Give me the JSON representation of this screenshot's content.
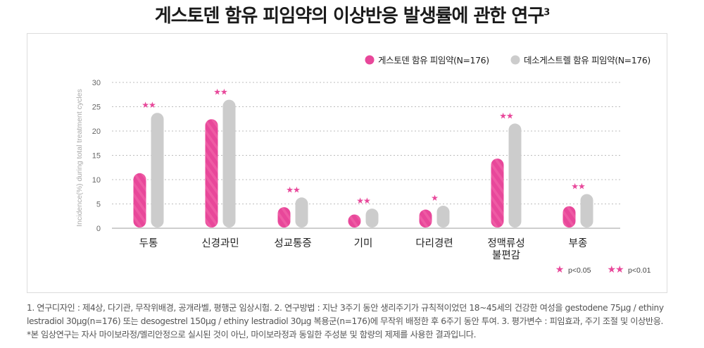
{
  "title": "게스토덴 함유 피임약의 이상반응 발생률에 관한 연구",
  "title_sup": "3",
  "legend": {
    "series1": "게스토덴 함유 피임약(N=176)",
    "series2": "데소게스트렐 함유 피임약(N=176)",
    "sig1_label": "p<0.05",
    "sig2_label": "p<0.01"
  },
  "colors": {
    "series1": "#e8479a",
    "series2": "#cccccc",
    "star": "#e8479a"
  },
  "chart_data": {
    "type": "bar",
    "title": "게스토덴 함유 피임약의 이상반응 발생률에 관한 연구",
    "ylabel": "Incidence(%) during total treatment cycles",
    "xlabel": "",
    "ylim": [
      0,
      30
    ],
    "yticks": [
      0,
      5,
      10,
      15,
      20,
      25,
      30
    ],
    "grid": true,
    "legend_position": "top-right",
    "categories": [
      "두통",
      "신경과민",
      "성교통증",
      "기미",
      "다리경련",
      "정맥류성\n불편감",
      "부종"
    ],
    "series": [
      {
        "name": "게스토덴 함유 피임약(N=176)",
        "values": [
          10.9,
          22.0,
          3.9,
          2.4,
          3.4,
          13.9,
          4.1
        ]
      },
      {
        "name": "데소게스트렐 함유 피임약(N=176)",
        "values": [
          23.3,
          26.0,
          5.9,
          3.6,
          4.2,
          21.1,
          6.6
        ]
      }
    ],
    "significance": [
      "★★",
      "★★",
      "★★",
      "★★",
      "★",
      "★★",
      "★★"
    ]
  },
  "footnote": [
    "1. 연구디자인 : 제4상, 다기관, 무작위배경, 공개라벨, 평행군 임상시험. 2. 연구방법 : 지난 3주기 동안 생리주기가 규칙적이었던  18~45세의 건강한 여성을 gestodene 75μg / ethiny",
    "lestradiol 30μg(n=176) 또는 desogestrel 150μg / ethiny lestradiol 30μg 복용군(n=176)에 무작위 배정한 후 6주기 동안 투여. 3. 평가변수 : 피임효과, 주기 조절 및 이상반응.",
    "*본 임상연구는 자사 마이보라정/멜리안정으로 실시된 것이 아닌,  마이보라정과 동일한 주성분 및 함량의 제제를 사용한 결과입니다."
  ]
}
